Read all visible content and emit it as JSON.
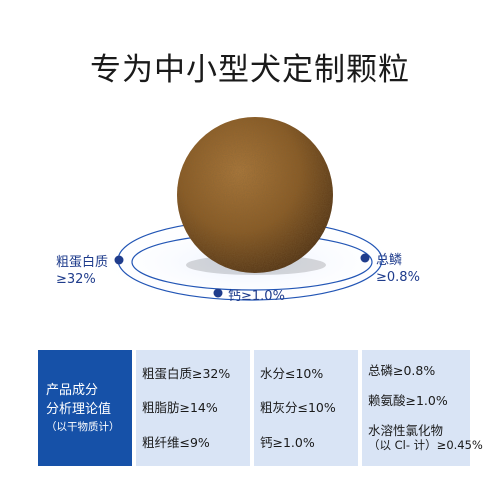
{
  "title": "专为中小型犬定制颗粒",
  "callouts": {
    "protein_line1": "粗蛋白质",
    "protein_line2": "≥32%",
    "phosphorus_line1": "总鳞",
    "phosphorus_line2": "≥0.8%",
    "calcium": "钙≥1.0%"
  },
  "table": {
    "header_line1": "产品成分",
    "header_line2": "分析理论值",
    "header_line3": "（以干物质计）",
    "col1": [
      "粗蛋白质≥32%",
      "粗脂肪≥14%",
      "粗纤维≤9%"
    ],
    "col2": [
      "水分≤10%",
      "粗灰分≤10%",
      "钙≥1.0%"
    ],
    "col3": [
      "总磷≥0.8%",
      "赖氨酸≥1.0%"
    ],
    "col3_last_line1": "水溶性氯化物",
    "col3_last_line2": "（以 Cl- 计）≥0.45%"
  },
  "colors": {
    "accent_blue": "#1651a8",
    "table_bg": "#d9e4f5",
    "orbit_blue": "#2255b5",
    "kibble_brown": "#8b5a22"
  }
}
